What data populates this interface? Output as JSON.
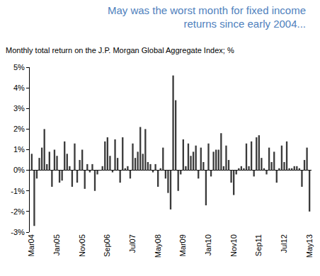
{
  "chart_data": {
    "type": "bar",
    "title": "May was the worst month for fixed income returns since early 2004...",
    "subtitle": "Monthly total return on the J.P. Morgan Global Aggregate Index; %",
    "categories": [
      "Mar04",
      null,
      null,
      null,
      null,
      null,
      null,
      null,
      null,
      null,
      "Jan05",
      null,
      null,
      null,
      null,
      null,
      null,
      null,
      null,
      null,
      "Nov05",
      null,
      null,
      null,
      null,
      null,
      null,
      null,
      null,
      null,
      "Sep06",
      null,
      null,
      null,
      null,
      null,
      null,
      null,
      null,
      null,
      "Jul07",
      null,
      null,
      null,
      null,
      null,
      null,
      null,
      null,
      null,
      "May08",
      null,
      null,
      null,
      null,
      null,
      null,
      null,
      null,
      null,
      "Mar09",
      null,
      null,
      null,
      null,
      null,
      null,
      null,
      null,
      null,
      "Jan10",
      null,
      null,
      null,
      null,
      null,
      null,
      null,
      null,
      null,
      "Nov10",
      null,
      null,
      null,
      null,
      null,
      null,
      null,
      null,
      null,
      "Sep11",
      null,
      null,
      null,
      null,
      null,
      null,
      null,
      null,
      null,
      "Jul12",
      null,
      null,
      null,
      null,
      null,
      null,
      null,
      null,
      null,
      "May13"
    ],
    "values": [
      0.8,
      -2.7,
      -0.4,
      0.6,
      1.1,
      2.0,
      0.3,
      0.9,
      -0.8,
      1.0,
      0.7,
      -0.6,
      -0.5,
      1.4,
      0.8,
      0.2,
      -0.8,
      1.3,
      -0.6,
      0.5,
      1.0,
      -0.9,
      0.3,
      -0.1,
      0.3,
      -1.0,
      -0.2,
      0.0,
      0.2,
      1.4,
      1.6,
      0.7,
      -0.1,
      1.5,
      0.6,
      -0.6,
      1.6,
      0.1,
      0.2,
      -0.4,
      1.3,
      0.6,
      0.9,
      2.1,
      0.8,
      2.0,
      0.4,
      0.3,
      -0.1,
      0.3,
      -0.8,
      0.1,
      1.1,
      -0.4,
      -1.1,
      -1.9,
      4.6,
      3.4,
      -1.0,
      -0.2,
      1.5,
      0.2,
      1.3,
      0.7,
      0.9,
      1.2,
      -0.4,
      1.1,
      0.4,
      -1.7,
      1.3,
      -0.3,
      0.9,
      1.0,
      1.0,
      1.8,
      0.2,
      1.2,
      0.5,
      -0.6,
      -1.2,
      -0.2,
      0.1,
      0.2,
      0.1,
      1.3,
      0.2,
      1.4,
      -0.3,
      1.6,
      1.7,
      0.6,
      0.1,
      -0.2,
      1.1,
      0.4,
      0.9,
      -0.6,
      0.1,
      1.2,
      0.4,
      1.4,
      0.1,
      0.1,
      0.2,
      0.2,
      0.1,
      -0.8,
      0.5,
      1.1,
      -2.0
    ],
    "color": "#3a3a3a",
    "ylim": [
      -3,
      5
    ],
    "yticks": [
      {
        "value": -3,
        "label": "-3%"
      },
      {
        "value": -2,
        "label": "-2%"
      },
      {
        "value": -1,
        "label": "-1%"
      },
      {
        "value": 0,
        "label": "0%"
      },
      {
        "value": 1,
        "label": "1%"
      },
      {
        "value": 2,
        "label": "2%"
      },
      {
        "value": 3,
        "label": "3%"
      },
      {
        "value": 4,
        "label": "4%"
      },
      {
        "value": 5,
        "label": "5%"
      }
    ],
    "grid": false
  }
}
